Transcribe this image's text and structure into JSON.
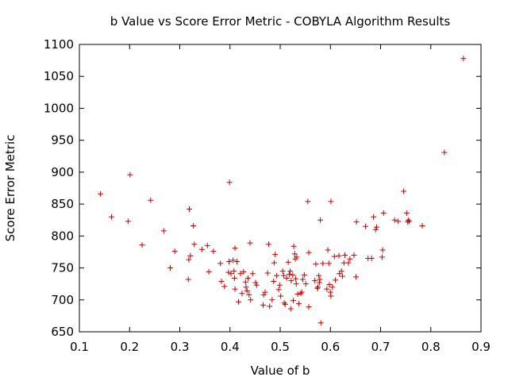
{
  "chart_data": {
    "type": "scatter",
    "title": "b Value vs Score Error Metric - COBYLA Algorithm Results",
    "xlabel": "Value of b",
    "ylabel": "Score Error Metric",
    "xlim": [
      0.1,
      0.9
    ],
    "ylim": [
      650,
      1100
    ],
    "xticks": [
      "0.1",
      "0.2",
      "0.3",
      "0.4",
      "0.5",
      "0.6",
      "0.7",
      "0.8",
      "0.9"
    ],
    "yticks": [
      "650",
      "700",
      "750",
      "800",
      "850",
      "900",
      "950",
      "1000",
      "1050",
      "1100"
    ],
    "grid": false,
    "legend": "none",
    "marker": "plus",
    "color": "#cc0000",
    "points": [
      [
        0.142,
        866
      ],
      [
        0.164,
        830
      ],
      [
        0.197,
        823
      ],
      [
        0.201,
        896
      ],
      [
        0.225,
        786
      ],
      [
        0.242,
        856
      ],
      [
        0.268,
        808
      ],
      [
        0.281,
        750
      ],
      [
        0.29,
        776
      ],
      [
        0.317,
        732
      ],
      [
        0.318,
        763
      ],
      [
        0.319,
        842
      ],
      [
        0.321,
        769
      ],
      [
        0.327,
        816
      ],
      [
        0.329,
        787
      ],
      [
        0.344,
        779
      ],
      [
        0.355,
        785
      ],
      [
        0.358,
        744
      ],
      [
        0.367,
        776
      ],
      [
        0.381,
        757
      ],
      [
        0.383,
        729
      ],
      [
        0.389,
        721
      ],
      [
        0.397,
        743
      ],
      [
        0.398,
        760
      ],
      [
        0.399,
        884
      ],
      [
        0.402,
        741
      ],
      [
        0.406,
        762
      ],
      [
        0.408,
        745
      ],
      [
        0.409,
        734
      ],
      [
        0.41,
        717
      ],
      [
        0.41,
        781
      ],
      [
        0.414,
        760
      ],
      [
        0.417,
        697
      ],
      [
        0.421,
        741
      ],
      [
        0.424,
        710
      ],
      [
        0.427,
        744
      ],
      [
        0.431,
        728
      ],
      [
        0.432,
        720
      ],
      [
        0.434,
        714
      ],
      [
        0.436,
        734
      ],
      [
        0.438,
        708
      ],
      [
        0.44,
        789
      ],
      [
        0.441,
        700
      ],
      [
        0.445,
        741
      ],
      [
        0.451,
        727
      ],
      [
        0.453,
        723
      ],
      [
        0.466,
        692
      ],
      [
        0.467,
        708
      ],
      [
        0.47,
        712
      ],
      [
        0.475,
        742
      ],
      [
        0.477,
        787
      ],
      [
        0.479,
        690
      ],
      [
        0.484,
        700
      ],
      [
        0.487,
        729
      ],
      [
        0.488,
        758
      ],
      [
        0.49,
        771
      ],
      [
        0.493,
        738
      ],
      [
        0.497,
        716
      ],
      [
        0.499,
        723
      ],
      [
        0.501,
        706
      ],
      [
        0.505,
        745
      ],
      [
        0.507,
        738
      ],
      [
        0.508,
        695
      ],
      [
        0.51,
        693
      ],
      [
        0.513,
        734
      ],
      [
        0.516,
        759
      ],
      [
        0.518,
        740
      ],
      [
        0.52,
        745
      ],
      [
        0.521,
        686
      ],
      [
        0.522,
        730
      ],
      [
        0.525,
        739
      ],
      [
        0.526,
        699
      ],
      [
        0.527,
        784
      ],
      [
        0.529,
        772
      ],
      [
        0.53,
        764
      ],
      [
        0.531,
        733
      ],
      [
        0.532,
        725
      ],
      [
        0.533,
        767
      ],
      [
        0.535,
        709
      ],
      [
        0.537,
        694
      ],
      [
        0.541,
        710
      ],
      [
        0.543,
        712
      ],
      [
        0.545,
        732
      ],
      [
        0.548,
        739
      ],
      [
        0.551,
        725
      ],
      [
        0.555,
        854
      ],
      [
        0.557,
        689
      ],
      [
        0.557,
        774
      ],
      [
        0.569,
        730
      ],
      [
        0.571,
        756
      ],
      [
        0.574,
        718
      ],
      [
        0.575,
        720
      ],
      [
        0.577,
        738
      ],
      [
        0.578,
        727
      ],
      [
        0.579,
        732
      ],
      [
        0.58,
        825
      ],
      [
        0.581,
        664
      ],
      [
        0.585,
        757
      ],
      [
        0.593,
        717
      ],
      [
        0.595,
        778
      ],
      [
        0.597,
        757
      ],
      [
        0.598,
        724
      ],
      [
        0.6,
        712
      ],
      [
        0.601,
        706
      ],
      [
        0.601,
        854
      ],
      [
        0.604,
        720
      ],
      [
        0.608,
        768
      ],
      [
        0.61,
        731
      ],
      [
        0.617,
        769
      ],
      [
        0.618,
        741
      ],
      [
        0.622,
        745
      ],
      [
        0.624,
        737
      ],
      [
        0.627,
        758
      ],
      [
        0.629,
        770
      ],
      [
        0.636,
        758
      ],
      [
        0.639,
        764
      ],
      [
        0.647,
        770
      ],
      [
        0.651,
        736
      ],
      [
        0.652,
        822
      ],
      [
        0.67,
        815
      ],
      [
        0.675,
        765
      ],
      [
        0.682,
        765
      ],
      [
        0.686,
        830
      ],
      [
        0.69,
        810
      ],
      [
        0.692,
        814
      ],
      [
        0.703,
        767
      ],
      [
        0.704,
        778
      ],
      [
        0.706,
        836
      ],
      [
        0.728,
        825
      ],
      [
        0.735,
        823
      ],
      [
        0.746,
        870
      ],
      [
        0.752,
        836
      ],
      [
        0.754,
        822
      ],
      [
        0.755,
        825
      ],
      [
        0.757,
        823
      ],
      [
        0.783,
        816
      ],
      [
        0.827,
        931
      ],
      [
        0.865,
        1078
      ]
    ]
  }
}
